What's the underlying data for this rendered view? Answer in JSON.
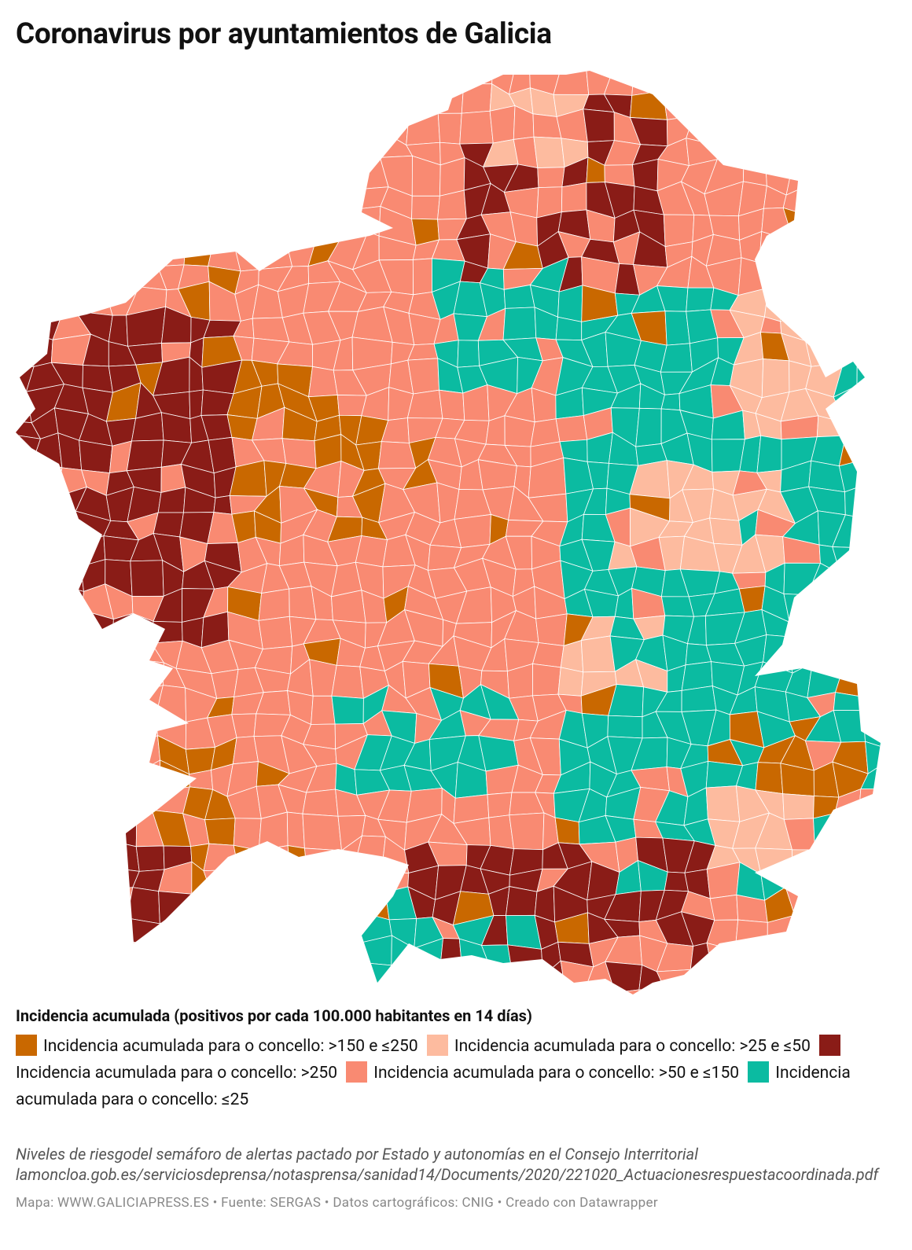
{
  "title": "Coronavirus por ayuntamientos de Galicia",
  "legend": {
    "title": "Incidencia acumulada (positivos por cada 100.000 habitantes en 14 días)",
    "items": [
      {
        "label": "Incidencia acumulada para o concello: >150 e ≤250",
        "color": "#c96800"
      },
      {
        "label": "Incidencia acumulada para o concello: >25 e ≤50",
        "color": "#fdbb9f"
      },
      {
        "label": "Incidencia acumulada para o concello: >250",
        "color": "#8a1c17"
      },
      {
        "label": "Incidencia acumulada para o concello: >50 e ≤150",
        "color": "#f98a72"
      },
      {
        "label": "Incidencia acumulada para o concello: ≤25",
        "color": "#0bbba1"
      }
    ]
  },
  "notes": [
    "Niveles de riesgodel semáforo de alertas pactado por Estado y autonomías en el Consejo Interritorial",
    "lamoncloa.gob.es/serviciosdeprensa/notasprensa/sanidad14/Documents/2020/221020_Actuacionesrespuestacoordinada.pdf"
  ],
  "footer": "Mapa: WWW.GALICIAPRESS.ES • Fuente: SERGAS • Datos cartográficos: CNIG • Creado con Datawrapper"
}
